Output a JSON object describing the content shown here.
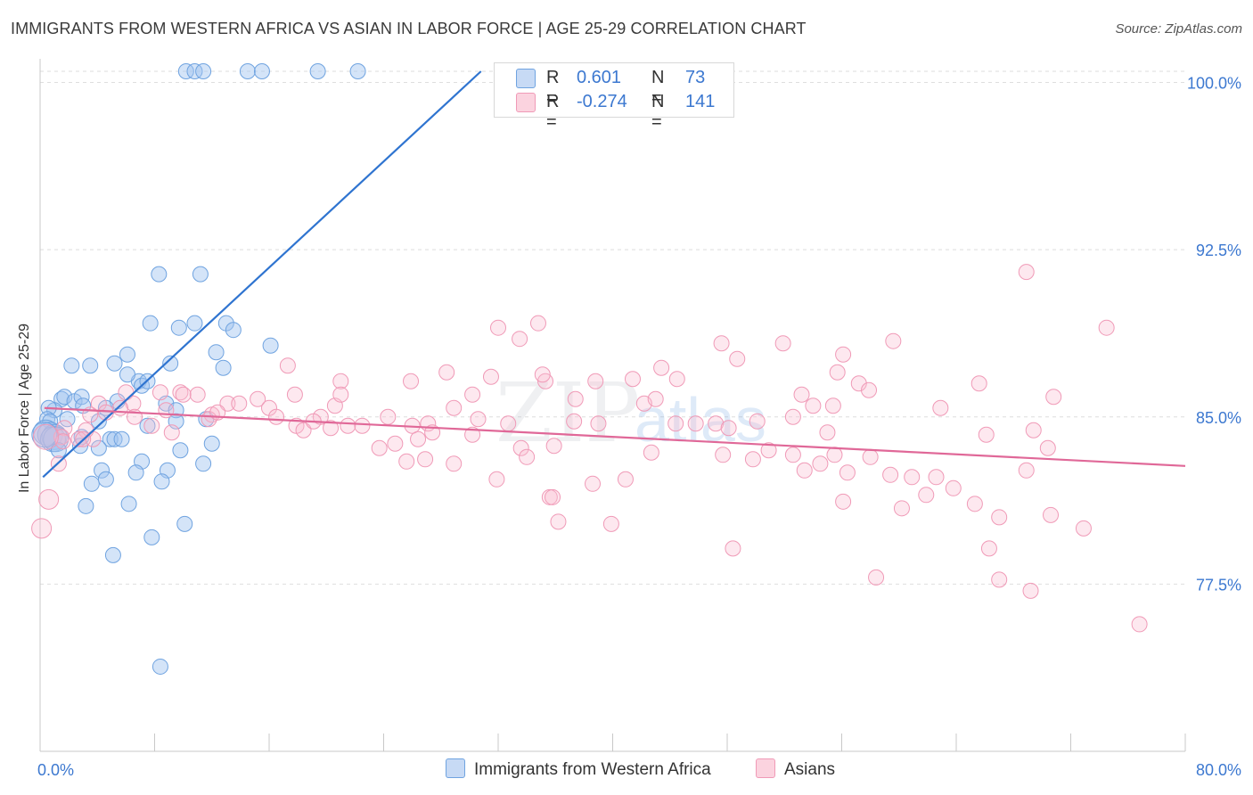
{
  "header": {
    "title": "IMMIGRANTS FROM WESTERN AFRICA VS ASIAN IN LABOR FORCE | AGE 25-29 CORRELATION CHART",
    "source": "Source: ZipAtlas.com"
  },
  "watermark": {
    "text_zip": "ZIP",
    "text_atlas": "atlas"
  },
  "legend_top": [
    {
      "r_label": "R =",
      "r_value": "0.601",
      "n_label": "N =",
      "n_value": "73",
      "color": "#6fa3e0"
    },
    {
      "r_label": "R =",
      "r_value": "-0.274",
      "n_label": "N =",
      "n_value": "141",
      "color": "#f09ab7"
    }
  ],
  "legend_bottom": [
    {
      "label": "Immigrants from Western Africa",
      "color": "#6fa3e0"
    },
    {
      "label": "Asians",
      "color": "#f09ab7"
    }
  ],
  "chart_data": {
    "type": "scatter",
    "title": "IMMIGRANTS FROM WESTERN AFRICA VS ASIAN IN LABOR FORCE | AGE 25-29 CORRELATION CHART",
    "xlabel": "",
    "ylabel": "In Labor Force | Age 25-29",
    "xlim": [
      0,
      80
    ],
    "ylim": [
      70.0,
      100.5
    ],
    "x_tick_labels": [
      "0.0%",
      "80.0%"
    ],
    "y_ticks": [
      77.5,
      85.0,
      92.5,
      100.0
    ],
    "y_tick_labels": [
      "77.5%",
      "85.0%",
      "92.5%",
      "100.0%"
    ],
    "grid": true,
    "legend_position": "top-center",
    "series": [
      {
        "name": "Immigrants from Western Africa",
        "color": "#6fa3e0",
        "r": 0.601,
        "n": 73,
        "trend": {
          "x": [
            0.2,
            30.8
          ],
          "y": [
            82.3,
            100.5
          ]
        },
        "points": [
          [
            10.2,
            100.5
          ],
          [
            10.8,
            100.5
          ],
          [
            11.4,
            100.5
          ],
          [
            14.5,
            100.5
          ],
          [
            15.5,
            100.5
          ],
          [
            19.4,
            100.5
          ],
          [
            22.2,
            100.5
          ],
          [
            8.3,
            91.4
          ],
          [
            11.2,
            91.4
          ],
          [
            7.7,
            89.2
          ],
          [
            9.7,
            89.0
          ],
          [
            10.8,
            89.2
          ],
          [
            13.0,
            89.2
          ],
          [
            13.5,
            88.9
          ],
          [
            16.1,
            88.2
          ],
          [
            12.3,
            87.9
          ],
          [
            6.1,
            87.8
          ],
          [
            3.5,
            87.3
          ],
          [
            5.2,
            87.4
          ],
          [
            2.2,
            87.3
          ],
          [
            12.8,
            87.2
          ],
          [
            9.1,
            87.4
          ],
          [
            6.9,
            86.6
          ],
          [
            6.1,
            86.9
          ],
          [
            7.1,
            86.4
          ],
          [
            7.5,
            86.6
          ],
          [
            1.5,
            85.8
          ],
          [
            1.7,
            85.9
          ],
          [
            2.4,
            85.7
          ],
          [
            2.9,
            85.9
          ],
          [
            3.0,
            85.5
          ],
          [
            5.4,
            85.7
          ],
          [
            8.8,
            85.6
          ],
          [
            1.0,
            85.3
          ],
          [
            0.6,
            85.4
          ],
          [
            4.6,
            85.4
          ],
          [
            9.5,
            85.3
          ],
          [
            0.5,
            84.9
          ],
          [
            0.7,
            84.8
          ],
          [
            1.9,
            84.9
          ],
          [
            4.1,
            84.8
          ],
          [
            9.5,
            84.8
          ],
          [
            11.6,
            84.9
          ],
          [
            0.4,
            84.3
          ],
          [
            0.7,
            84.2
          ],
          [
            1.0,
            84.1
          ],
          [
            0.9,
            84.0
          ],
          [
            1.1,
            84.0
          ],
          [
            2.9,
            84.1
          ],
          [
            4.9,
            84.0
          ],
          [
            5.2,
            84.0
          ],
          [
            5.7,
            84.0
          ],
          [
            7.5,
            84.6
          ],
          [
            1.3,
            83.5
          ],
          [
            2.8,
            83.7
          ],
          [
            4.1,
            83.6
          ],
          [
            9.8,
            83.5
          ],
          [
            12.0,
            83.8
          ],
          [
            7.1,
            83.0
          ],
          [
            8.9,
            82.6
          ],
          [
            11.4,
            82.9
          ],
          [
            4.3,
            82.6
          ],
          [
            6.7,
            82.5
          ],
          [
            3.6,
            82.0
          ],
          [
            4.6,
            82.2
          ],
          [
            8.5,
            82.1
          ],
          [
            6.2,
            81.1
          ],
          [
            3.2,
            81.0
          ],
          [
            10.1,
            80.2
          ],
          [
            7.8,
            79.6
          ],
          [
            5.1,
            78.8
          ],
          [
            8.4,
            73.8
          ],
          [
            0.3,
            84.2
          ]
        ]
      },
      {
        "name": "Asians",
        "color": "#f09ab7",
        "r": -0.274,
        "n": 141,
        "trend": {
          "x": [
            0.3,
            80.0
          ],
          "y": [
            85.4,
            82.8
          ]
        },
        "points": [
          [
            68.9,
            91.5
          ],
          [
            74.5,
            89.0
          ],
          [
            32.0,
            89.0
          ],
          [
            34.8,
            89.2
          ],
          [
            33.5,
            88.5
          ],
          [
            51.9,
            88.3
          ],
          [
            59.6,
            88.4
          ],
          [
            47.6,
            88.3
          ],
          [
            48.7,
            87.6
          ],
          [
            56.1,
            87.8
          ],
          [
            43.4,
            87.2
          ],
          [
            44.5,
            86.7
          ],
          [
            35.3,
            86.6
          ],
          [
            35.1,
            86.9
          ],
          [
            41.4,
            86.7
          ],
          [
            28.4,
            87.0
          ],
          [
            25.9,
            86.6
          ],
          [
            21.0,
            86.6
          ],
          [
            17.3,
            87.3
          ],
          [
            55.7,
            87.0
          ],
          [
            57.2,
            86.5
          ],
          [
            53.2,
            86.0
          ],
          [
            57.9,
            86.2
          ],
          [
            38.8,
            86.6
          ],
          [
            31.5,
            86.8
          ],
          [
            65.6,
            86.5
          ],
          [
            70.8,
            85.9
          ],
          [
            62.9,
            85.4
          ],
          [
            54.0,
            85.5
          ],
          [
            55.4,
            85.5
          ],
          [
            52.6,
            85.0
          ],
          [
            47.2,
            84.7
          ],
          [
            50.1,
            84.8
          ],
          [
            45.8,
            84.7
          ],
          [
            42.2,
            85.6
          ],
          [
            43.0,
            85.8
          ],
          [
            37.4,
            85.8
          ],
          [
            37.3,
            84.8
          ],
          [
            39.0,
            84.7
          ],
          [
            30.2,
            86.0
          ],
          [
            28.9,
            85.4
          ],
          [
            30.6,
            84.9
          ],
          [
            30.2,
            84.2
          ],
          [
            24.3,
            85.0
          ],
          [
            26.0,
            84.6
          ],
          [
            23.7,
            83.6
          ],
          [
            27.1,
            84.7
          ],
          [
            26.4,
            84.0
          ],
          [
            19.6,
            85.0
          ],
          [
            21.5,
            84.6
          ],
          [
            17.8,
            86.0
          ],
          [
            20.6,
            85.5
          ],
          [
            21.0,
            86.0
          ],
          [
            11.0,
            86.0
          ],
          [
            13.1,
            85.6
          ],
          [
            12.0,
            85.1
          ],
          [
            9.8,
            86.1
          ],
          [
            10.0,
            86.0
          ],
          [
            8.8,
            85.3
          ],
          [
            8.4,
            86.1
          ],
          [
            6.0,
            86.1
          ],
          [
            6.5,
            85.6
          ],
          [
            5.6,
            85.4
          ],
          [
            4.1,
            85.6
          ],
          [
            4.6,
            85.2
          ],
          [
            3.5,
            85.1
          ],
          [
            3.7,
            84.0
          ],
          [
            3.2,
            84.4
          ],
          [
            1.7,
            84.5
          ],
          [
            1.5,
            84.1
          ],
          [
            2.7,
            84.0
          ],
          [
            1.6,
            83.9
          ],
          [
            3.0,
            84.0
          ],
          [
            1.3,
            82.9
          ],
          [
            0.4,
            84.1
          ],
          [
            6.6,
            85.0
          ],
          [
            7.8,
            84.6
          ],
          [
            9.2,
            84.3
          ],
          [
            11.8,
            84.9
          ],
          [
            12.4,
            85.2
          ],
          [
            13.9,
            85.6
          ],
          [
            15.2,
            85.8
          ],
          [
            16.0,
            85.4
          ],
          [
            16.5,
            85.0
          ],
          [
            17.9,
            84.6
          ],
          [
            18.4,
            84.4
          ],
          [
            19.1,
            84.8
          ],
          [
            20.3,
            84.5
          ],
          [
            22.5,
            84.6
          ],
          [
            24.8,
            83.8
          ],
          [
            25.6,
            83.0
          ],
          [
            26.9,
            83.1
          ],
          [
            27.4,
            84.3
          ],
          [
            28.9,
            82.9
          ],
          [
            32.7,
            84.7
          ],
          [
            33.6,
            83.6
          ],
          [
            34.0,
            83.2
          ],
          [
            35.9,
            83.7
          ],
          [
            31.9,
            82.2
          ],
          [
            35.6,
            81.4
          ],
          [
            35.8,
            81.4
          ],
          [
            38.6,
            82.0
          ],
          [
            36.2,
            80.3
          ],
          [
            39.9,
            80.2
          ],
          [
            40.9,
            82.2
          ],
          [
            42.7,
            83.4
          ],
          [
            44.4,
            84.7
          ],
          [
            47.7,
            83.3
          ],
          [
            49.8,
            83.1
          ],
          [
            50.9,
            83.5
          ],
          [
            52.6,
            83.3
          ],
          [
            54.5,
            82.9
          ],
          [
            55.5,
            83.3
          ],
          [
            53.4,
            82.6
          ],
          [
            56.4,
            82.5
          ],
          [
            58.0,
            83.2
          ],
          [
            59.4,
            82.4
          ],
          [
            60.9,
            82.3
          ],
          [
            61.9,
            81.5
          ],
          [
            62.6,
            82.3
          ],
          [
            63.8,
            81.8
          ],
          [
            65.3,
            81.1
          ],
          [
            67.0,
            80.5
          ],
          [
            68.9,
            82.6
          ],
          [
            70.6,
            80.6
          ],
          [
            72.9,
            80.0
          ],
          [
            66.3,
            79.1
          ],
          [
            67.0,
            77.7
          ],
          [
            69.2,
            77.2
          ],
          [
            76.8,
            75.7
          ],
          [
            58.4,
            77.8
          ],
          [
            48.4,
            79.1
          ],
          [
            56.1,
            81.2
          ],
          [
            60.2,
            80.9
          ],
          [
            66.1,
            84.2
          ],
          [
            69.4,
            84.4
          ],
          [
            70.4,
            83.6
          ],
          [
            48.1,
            84.5
          ],
          [
            55.0,
            84.3
          ],
          [
            0.1,
            80.0
          ],
          [
            0.6,
            81.3
          ]
        ]
      }
    ]
  }
}
